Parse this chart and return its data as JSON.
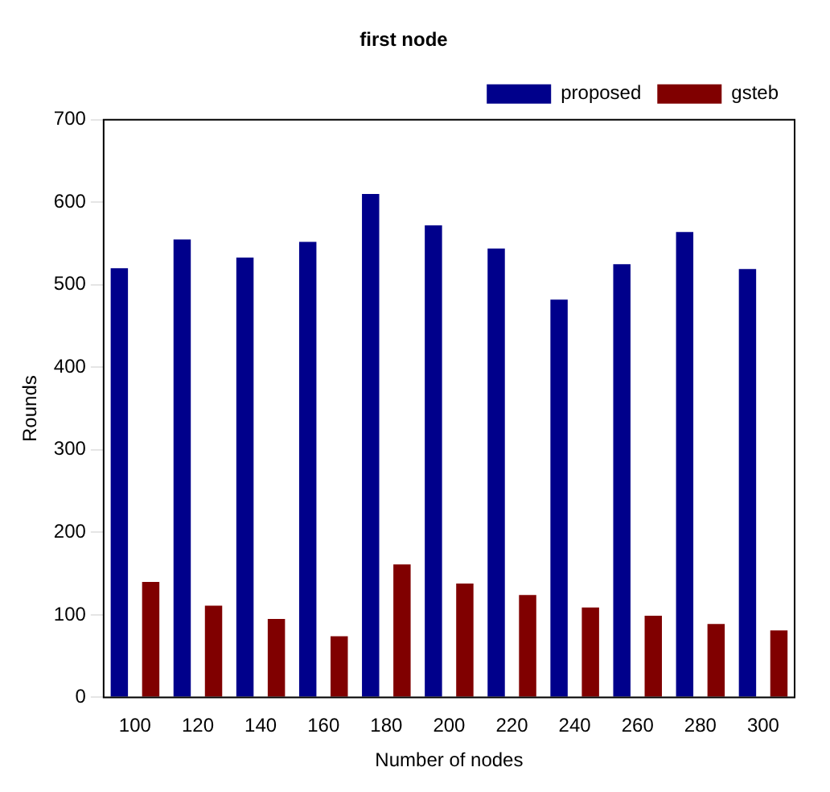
{
  "chart_data": {
    "type": "bar",
    "title": "first node",
    "xlabel": "Number of nodes",
    "ylabel": "Rounds",
    "categories": [
      "100",
      "120",
      "140",
      "160",
      "180",
      "200",
      "220",
      "240",
      "260",
      "280",
      "300"
    ],
    "series": [
      {
        "name": "proposed",
        "color": "#00008b",
        "values": [
          520,
          555,
          533,
          552,
          610,
          572,
          544,
          482,
          525,
          564,
          519
        ]
      },
      {
        "name": "gsteb",
        "color": "#800000",
        "values": [
          140,
          111,
          95,
          74,
          161,
          138,
          124,
          109,
          99,
          89,
          81
        ]
      }
    ],
    "ylim": [
      0,
      700
    ],
    "yticks": [
      0,
      100,
      200,
      300,
      400,
      500,
      600,
      700
    ],
    "grid": false,
    "legend": "top right"
  }
}
